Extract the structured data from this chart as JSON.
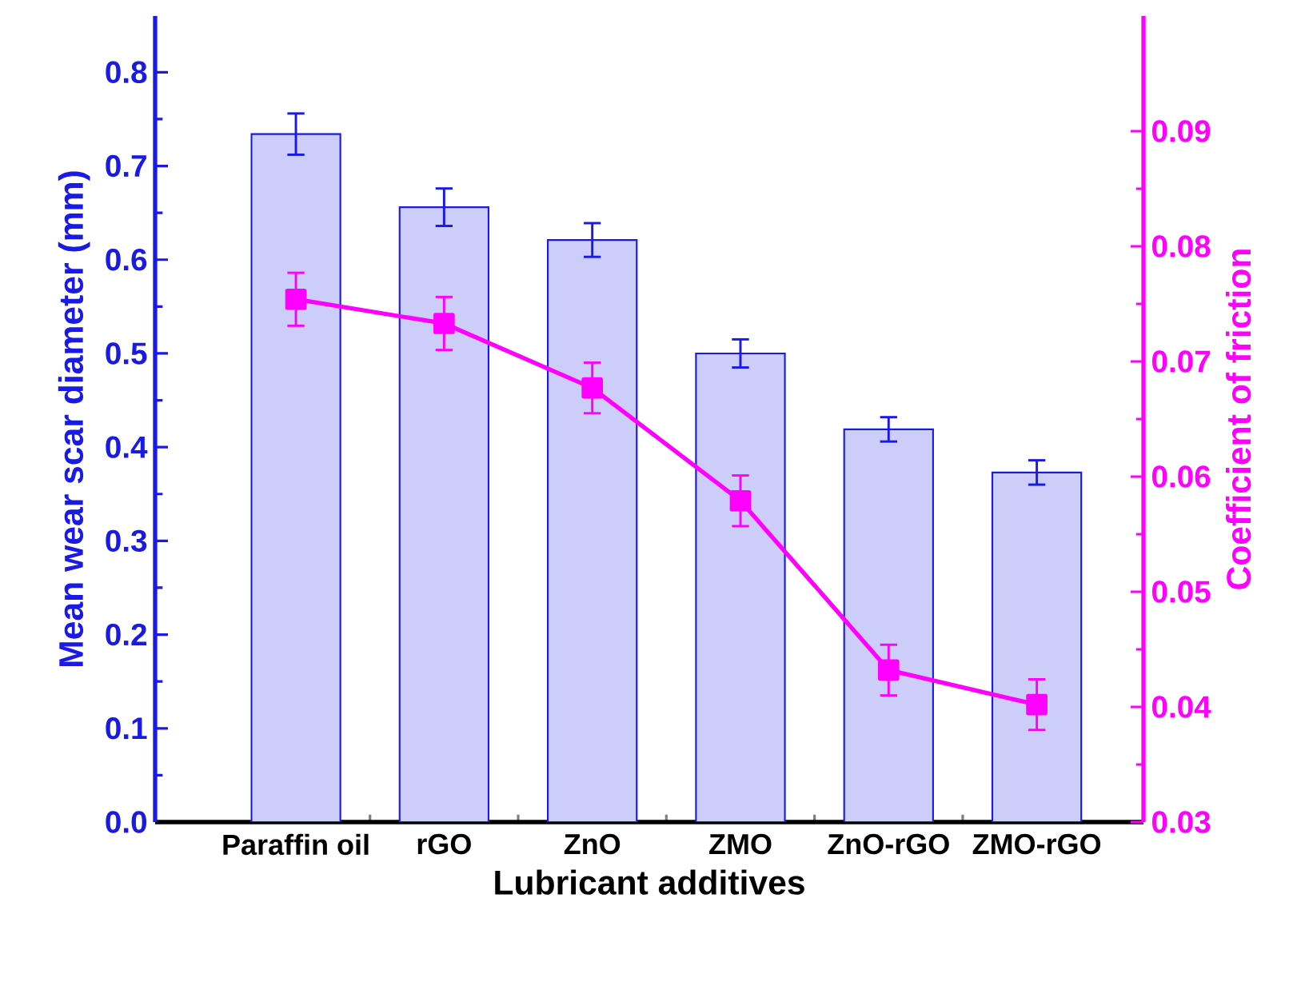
{
  "chart_data": {
    "type": "bar",
    "xlabel": "Lubricant additives",
    "ylabel": "Mean wear scar diameter (mm)",
    "y2label": "Coefficient of friction",
    "categories": [
      "Paraffin oil",
      "rGO",
      "ZnO",
      "ZMO",
      "ZnO-rGO",
      "ZMO-rGO"
    ],
    "series": [
      {
        "color": "#1a1ae6",
        "values": [
          0.734,
          0.656,
          0.621,
          0.5,
          0.419,
          0.373
        ],
        "errors": [
          0.022,
          0.02,
          0.018,
          0.015,
          0.013,
          0.013
        ]
      },
      {
        "type": "line",
        "axis": "y2",
        "color": "#ff00ff",
        "marker": "square",
        "values": [
          0.0754,
          0.0733,
          0.0677,
          0.0579,
          0.0432,
          0.0402
        ],
        "errors": [
          0.0023,
          0.0023,
          0.0022,
          0.0022,
          0.0022,
          0.0022
        ]
      }
    ],
    "ylim": [
      0,
      0.86
    ],
    "yticks": [
      {
        "value": 0,
        "label": "0.0"
      },
      0.1,
      0.2,
      0.3,
      0.4,
      0.5,
      0.6,
      0.7,
      0.8
    ],
    "y2lim": [
      0.03,
      0.1
    ],
    "y2ticks": [
      0.03,
      0.04,
      0.05,
      0.06,
      0.07,
      0.08,
      0.09
    ],
    "legend": false,
    "grid": false
  }
}
